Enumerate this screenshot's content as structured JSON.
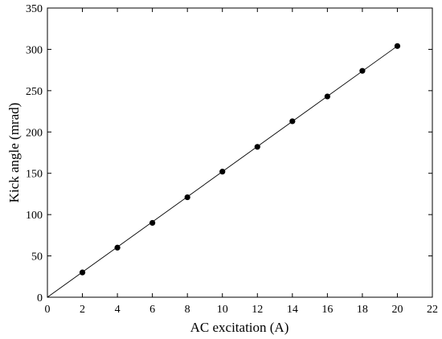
{
  "chart_data": {
    "type": "scatter",
    "title": "",
    "xlabel": "AC excitation (A)",
    "ylabel": "Kick angle (mrad)",
    "xlim": [
      0,
      22
    ],
    "ylim": [
      0,
      350
    ],
    "xticks": [
      0,
      2,
      4,
      6,
      8,
      10,
      12,
      14,
      16,
      18,
      20,
      22
    ],
    "yticks": [
      0,
      50,
      100,
      150,
      200,
      250,
      300,
      350
    ],
    "grid": false,
    "legend": "none",
    "series": [
      {
        "marker": "filled-circle",
        "color": "#000000",
        "x": [
          2,
          4,
          6,
          8,
          10,
          12,
          14,
          16,
          18,
          20
        ],
        "y": [
          30,
          60,
          90,
          121,
          152,
          182,
          213,
          243,
          274,
          304
        ]
      }
    ],
    "fit_line": {
      "x": [
        0,
        20
      ],
      "y": [
        0,
        304
      ],
      "color": "#000000"
    }
  }
}
